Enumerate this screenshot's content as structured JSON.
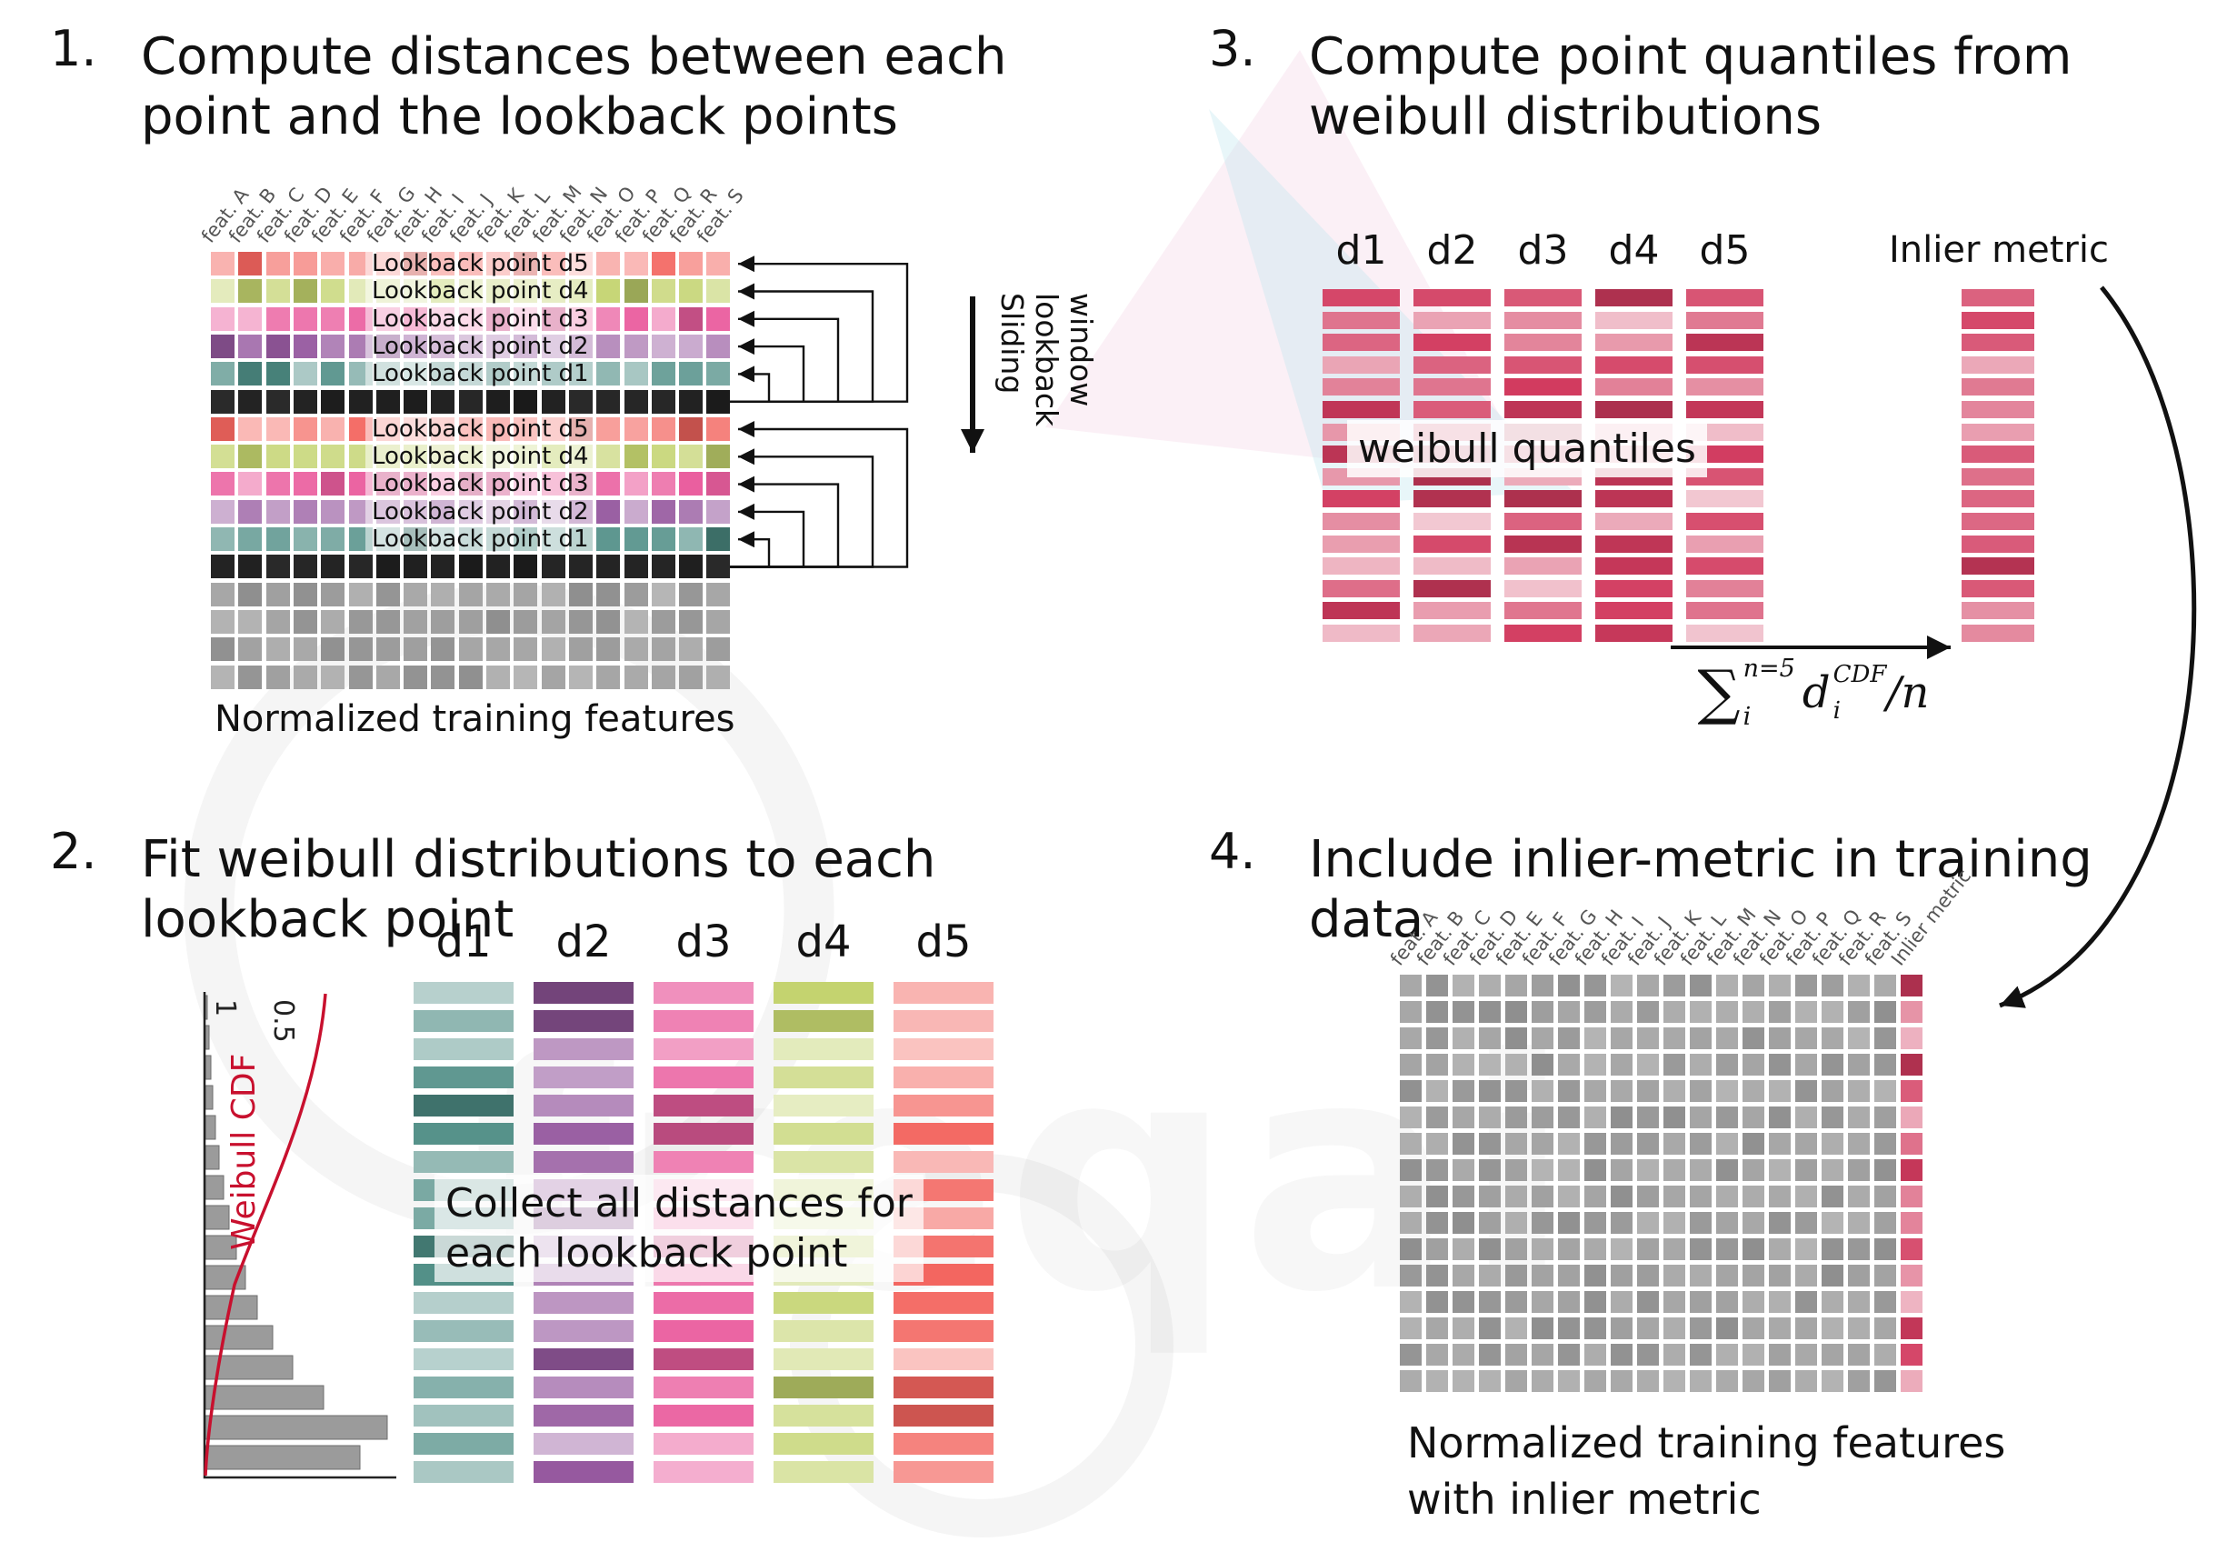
{
  "colors": {
    "d1": "#4d8c84",
    "d2": "#96599f",
    "d3": "#ea5f9f",
    "d4": "#c3d36e",
    "d5": "#f3655f",
    "black": "#1a1a1a",
    "gray": "#a4a4a4",
    "quantile": "#d23b5f",
    "cdf_red": "#c8102e",
    "hist_gray": "#9b9b9b"
  },
  "watermark": {
    "text": "freqai"
  },
  "panel1": {
    "number": "1.",
    "title_lines": [
      "Compute distances between each",
      "point and the lookback points"
    ],
    "caption": "Normalized training features",
    "sliding_window_label": "Sliding lookback window",
    "feature_headers": [
      "feat. A",
      "feat. B",
      "feat. C",
      "feat. D",
      "feat. E",
      "feat. F",
      "feat. G",
      "feat. H",
      "feat. I",
      "feat. J",
      "feat. K",
      "feat. L",
      "feat. M",
      "feat. N",
      "feat. O",
      "feat. P",
      "feat. Q",
      "feat. R",
      "feat. S"
    ],
    "rows": [
      {
        "color": "d5",
        "label": "Lookback point d5"
      },
      {
        "color": "d4",
        "label": "Lookback point d4"
      },
      {
        "color": "d3",
        "label": "Lookback point d3"
      },
      {
        "color": "d2",
        "label": "Lookback point d2"
      },
      {
        "color": "d1",
        "label": "Lookback point d1"
      },
      {
        "color": "black"
      },
      {
        "color": "d5",
        "label": "Lookback point d5"
      },
      {
        "color": "d4",
        "label": "Lookback point d4"
      },
      {
        "color": "d3",
        "label": "Lookback point d3"
      },
      {
        "color": "d2",
        "label": "Lookback point d2"
      },
      {
        "color": "d1",
        "label": "Lookback point d1"
      },
      {
        "color": "black"
      },
      {
        "color": "gray"
      },
      {
        "color": "gray"
      },
      {
        "color": "gray"
      },
      {
        "color": "gray"
      }
    ]
  },
  "panel2": {
    "number": "2.",
    "title_lines": [
      "Fit weibull distributions to each",
      "lookback point"
    ],
    "plot": {
      "ylabel": "Weibull CDF",
      "tick1": "1",
      "tick2": "0.5",
      "bar_widths": [
        2,
        4,
        6,
        8,
        11,
        15,
        20,
        26,
        34,
        44,
        57,
        74,
        96,
        130,
        200,
        170
      ]
    },
    "columns": [
      {
        "header": "d1",
        "color": "d1"
      },
      {
        "header": "d2",
        "color": "d2"
      },
      {
        "header": "d3",
        "color": "d3"
      },
      {
        "header": "d4",
        "color": "d4"
      },
      {
        "header": "d5",
        "color": "d5"
      }
    ],
    "bars_per_column": 18,
    "overlay_lines": [
      "Collect all distances for",
      "each lookback point"
    ]
  },
  "panel3": {
    "number": "3.",
    "title_lines": [
      "Compute point quantiles from",
      "weibull distributions"
    ],
    "column_headers": [
      "d1",
      "d2",
      "d3",
      "d4",
      "d5"
    ],
    "bars_per_column": 16,
    "inlier_header": "Inlier metric",
    "overlay_text": "weibull quantiles",
    "formula": {
      "sum": "∑",
      "sum_sup": "n=5",
      "sum_sub": "i",
      "var": "d",
      "var_sup": "CDF",
      "var_sub": "i",
      "divisor": "/n"
    }
  },
  "panel4": {
    "number": "4.",
    "title_lines": [
      "Include inlier-metric in training",
      "data"
    ],
    "feature_headers": [
      "feat. A",
      "feat. B",
      "feat. C",
      "feat. D",
      "feat. E",
      "feat. F",
      "feat. G",
      "feat. H",
      "feat. I",
      "feat. J",
      "feat. K",
      "feat. L",
      "feat. M",
      "feat. N",
      "feat. O",
      "feat. P",
      "feat. Q",
      "feat. R",
      "feat. S"
    ],
    "inlier_header": "Inlier metric",
    "caption_lines": [
      "Normalized training features",
      "with inlier metric"
    ],
    "rows": 16,
    "feature_cols": 19
  }
}
